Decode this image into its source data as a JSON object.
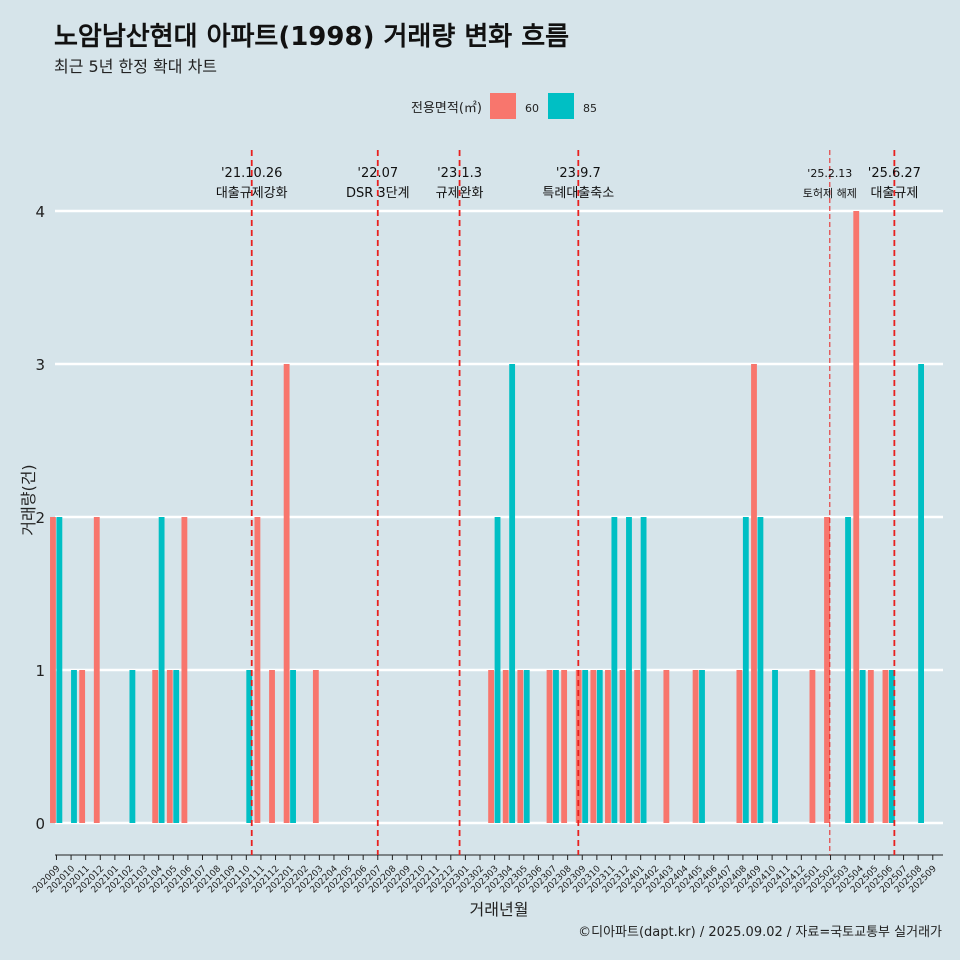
{
  "title": "노암남산현대 아파트(1998) 거래량 변화 흐름",
  "subtitle": "최근 5년 한정 확대 차트",
  "caption": "©디아파트(dapt.kr) / 2025.09.02 / 자료=국토교통부 실거래가",
  "chart_data": {
    "type": "bar",
    "xlabel": "거래년월",
    "ylabel": "거래량(건)",
    "ylim": [
      0,
      4
    ],
    "y_ticks": [
      0,
      1,
      2,
      3,
      4
    ],
    "grid": true,
    "legend": {
      "title": "전용면적(㎡)",
      "placement": "top",
      "entries": [
        {
          "name": "60",
          "color": "#f8766d"
        },
        {
          "name": "85",
          "color": "#00bfc4"
        }
      ]
    },
    "categories": [
      "202009",
      "202010",
      "202011",
      "202012",
      "202101",
      "202102",
      "202103",
      "202104",
      "202105",
      "202106",
      "202107",
      "202108",
      "202109",
      "202110",
      "202111",
      "202112",
      "202201",
      "202202",
      "202203",
      "202204",
      "202205",
      "202206",
      "202207",
      "202208",
      "202209",
      "202210",
      "202211",
      "202212",
      "202301",
      "202302",
      "202303",
      "202304",
      "202305",
      "202306",
      "202307",
      "202308",
      "202309",
      "202310",
      "202311",
      "202312",
      "202401",
      "202402",
      "202403",
      "202404",
      "202405",
      "202406",
      "202407",
      "202408",
      "202409",
      "202410",
      "202411",
      "202412",
      "202501",
      "202502",
      "202503",
      "202504",
      "202505",
      "202506",
      "202507",
      "202508",
      "202509"
    ],
    "series": [
      {
        "name": "60",
        "color": "#f8766d",
        "values": [
          2,
          0,
          1,
          2,
          0,
          0,
          0,
          1,
          1,
          2,
          0,
          0,
          0,
          0,
          2,
          1,
          3,
          0,
          1,
          0,
          0,
          0,
          0,
          0,
          0,
          0,
          0,
          0,
          0,
          0,
          1,
          1,
          1,
          0,
          1,
          1,
          1,
          1,
          1,
          1,
          1,
          0,
          1,
          0,
          1,
          0,
          0,
          1,
          3,
          0,
          0,
          0,
          1,
          2,
          0,
          4,
          1,
          1,
          0,
          0,
          0
        ]
      },
      {
        "name": "85",
        "color": "#00bfc4",
        "values": [
          2,
          1,
          0,
          0,
          0,
          1,
          0,
          2,
          1,
          0,
          0,
          0,
          0,
          1,
          0,
          0,
          1,
          0,
          0,
          0,
          0,
          0,
          0,
          0,
          0,
          0,
          0,
          0,
          0,
          0,
          2,
          3,
          1,
          0,
          1,
          0,
          1,
          1,
          2,
          2,
          2,
          0,
          0,
          0,
          1,
          0,
          0,
          2,
          2,
          1,
          0,
          0,
          0,
          0,
          2,
          1,
          0,
          1,
          0,
          3,
          0
        ]
      }
    ],
    "annotations": [
      {
        "date": "'21.10.26",
        "label": "대출규제강화",
        "x": "202110",
        "offset": 0.87,
        "style": "dashed"
      },
      {
        "date": "'22.07",
        "label": "DSR 3단계",
        "x": "202207",
        "offset": 0.5,
        "style": "dashed"
      },
      {
        "date": "'23.1.3",
        "label": "규제완화",
        "x": "202301",
        "offset": 0.1,
        "style": "dashed"
      },
      {
        "date": "'23.9.7",
        "label": "특례대출축소",
        "x": "202309",
        "offset": 0.23,
        "style": "dashed"
      },
      {
        "date": "'25.2.13",
        "label": "토허제 해제",
        "x": "202502",
        "offset": 0.45,
        "style": "thin-dashed"
      },
      {
        "date": "'25.6.27",
        "label": "대출규제",
        "x": "202506",
        "offset": 0.87,
        "style": "dashed"
      }
    ]
  }
}
